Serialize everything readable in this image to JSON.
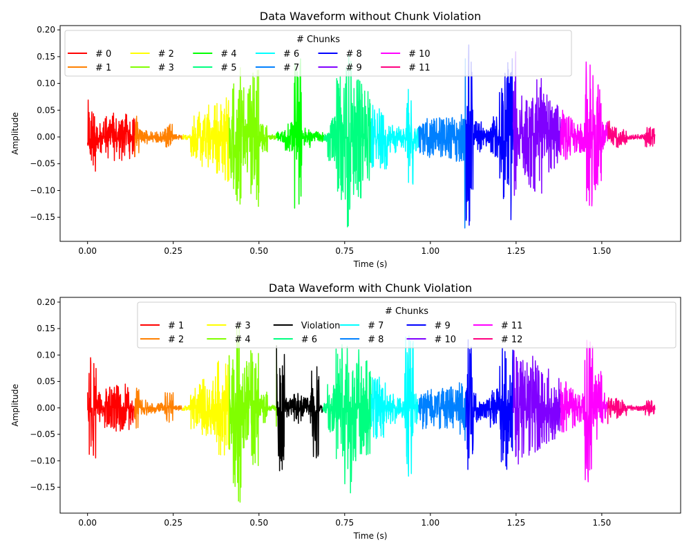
{
  "chart_data": [
    {
      "type": "line",
      "title": "Data Waveform without Chunk Violation",
      "xlabel": "Time (s)",
      "ylabel": "Amplitude",
      "xlim": [
        -0.08,
        1.73
      ],
      "ylim": [
        -0.195,
        0.208
      ],
      "xticks": [
        "0.00",
        "0.25",
        "0.50",
        "0.75",
        "1.00",
        "1.25",
        "1.50"
      ],
      "yticks": [
        "-0.15",
        "-0.10",
        "-0.05",
        "0.00",
        "0.05",
        "0.10",
        "0.15",
        "0.20"
      ],
      "legend": {
        "title": "# Chunks",
        "placement": "top",
        "columns": 8
      },
      "envelope_bin_s": 0.025,
      "envelope_peak": [
        0.07,
        0.03,
        0.04,
        0.045,
        0.045,
        0.04,
        0.015,
        0.01,
        0.01,
        0.025,
        0.005,
        0.005,
        0.04,
        0.06,
        0.06,
        0.07,
        0.1,
        0.13,
        0.1,
        0.13,
        0.03,
        0.005,
        0.01,
        0.03,
        0.15,
        0.02,
        0.01,
        0.01,
        0.05,
        0.12,
        0.17,
        0.12,
        0.09,
        0.06,
        0.06,
        0.03,
        0.02,
        0.09,
        0.03,
        0.04,
        0.035,
        0.04,
        0.04,
        0.05,
        0.18,
        0.03,
        0.02,
        0.04,
        0.12,
        0.16,
        0.08,
        0.1,
        0.11,
        0.08,
        0.06,
        0.05,
        0.04,
        0.03,
        0.15,
        0.1,
        0.03,
        0.02,
        0.015,
        0.005,
        0.005,
        0.02
      ],
      "series": [
        {
          "name": "# 0",
          "color": "#ff0000",
          "t": [
            0.0,
            0.138
          ]
        },
        {
          "name": "# 1",
          "color": "#ff8000",
          "t": [
            0.138,
            0.276
          ]
        },
        {
          "name": "# 2",
          "color": "#ffff00",
          "t": [
            0.276,
            0.414
          ]
        },
        {
          "name": "# 3",
          "color": "#80ff00",
          "t": [
            0.414,
            0.552
          ]
        },
        {
          "name": "# 4",
          "color": "#00ff00",
          "t": [
            0.552,
            0.69
          ]
        },
        {
          "name": "# 5",
          "color": "#00ff80",
          "t": [
            0.69,
            0.828
          ]
        },
        {
          "name": "# 6",
          "color": "#00ffff",
          "t": [
            0.828,
            0.966
          ]
        },
        {
          "name": "# 7",
          "color": "#0080ff",
          "t": [
            0.966,
            1.104
          ]
        },
        {
          "name": "# 8",
          "color": "#0000ff",
          "t": [
            1.104,
            1.242
          ]
        },
        {
          "name": "# 9",
          "color": "#8000ff",
          "t": [
            1.242,
            1.38
          ]
        },
        {
          "name": "# 10",
          "color": "#ff00ff",
          "t": [
            1.38,
            1.518
          ]
        },
        {
          "name": "# 11",
          "color": "#ff0080",
          "t": [
            1.518,
            1.655
          ]
        }
      ]
    },
    {
      "type": "line",
      "title": "Data Waveform with Chunk Violation",
      "xlabel": "Time (s)",
      "ylabel": "Amplitude",
      "xlim": [
        -0.08,
        1.73
      ],
      "ylim": [
        -0.199,
        0.209
      ],
      "xticks": [
        "0.00",
        "0.25",
        "0.50",
        "0.75",
        "1.00",
        "1.25",
        "1.50"
      ],
      "yticks": [
        "-0.15",
        "-0.10",
        "-0.05",
        "0.00",
        "0.05",
        "0.10",
        "0.15",
        "0.20"
      ],
      "legend": {
        "title": "# Chunks",
        "placement": "top-right",
        "columns": 8
      },
      "envelope_bin_s": 0.025,
      "envelope_peak": [
        0.1,
        0.03,
        0.04,
        0.045,
        0.045,
        0.04,
        0.015,
        0.01,
        0.01,
        0.03,
        0.005,
        0.005,
        0.04,
        0.06,
        0.06,
        0.1,
        0.1,
        0.18,
        0.1,
        0.12,
        0.03,
        0.005,
        0.12,
        0.02,
        0.03,
        0.02,
        0.1,
        0.01,
        0.05,
        0.12,
        0.17,
        0.12,
        0.09,
        0.06,
        0.06,
        0.03,
        0.02,
        0.14,
        0.03,
        0.04,
        0.035,
        0.04,
        0.04,
        0.05,
        0.13,
        0.03,
        0.02,
        0.04,
        0.12,
        0.11,
        0.11,
        0.1,
        0.09,
        0.08,
        0.06,
        0.05,
        0.04,
        0.03,
        0.14,
        0.07,
        0.03,
        0.02,
        0.015,
        0.005,
        0.005,
        0.015
      ],
      "series": [
        {
          "name": "# 1",
          "color": "#ff0000",
          "t": [
            0.0,
            0.138
          ]
        },
        {
          "name": "# 2",
          "color": "#ff8000",
          "t": [
            0.138,
            0.276
          ]
        },
        {
          "name": "# 3",
          "color": "#ffff00",
          "t": [
            0.276,
            0.414
          ]
        },
        {
          "name": "# 4",
          "color": "#80ff00",
          "t": [
            0.414,
            0.552
          ]
        },
        {
          "name": "Violation",
          "color": "#000000",
          "t": [
            0.552,
            0.686
          ]
        },
        {
          "name": "# 6",
          "color": "#00ff80",
          "t": [
            0.686,
            0.828
          ]
        },
        {
          "name": "# 7",
          "color": "#00ffff",
          "t": [
            0.828,
            0.966
          ]
        },
        {
          "name": "# 8",
          "color": "#0080ff",
          "t": [
            0.966,
            1.104
          ]
        },
        {
          "name": "# 9",
          "color": "#0000ff",
          "t": [
            1.104,
            1.242
          ]
        },
        {
          "name": "# 10",
          "color": "#8000ff",
          "t": [
            1.242,
            1.38
          ]
        },
        {
          "name": "# 11",
          "color": "#ff00ff",
          "t": [
            1.38,
            1.518
          ]
        },
        {
          "name": "# 12",
          "color": "#ff0080",
          "t": [
            1.518,
            1.655
          ]
        }
      ]
    }
  ]
}
